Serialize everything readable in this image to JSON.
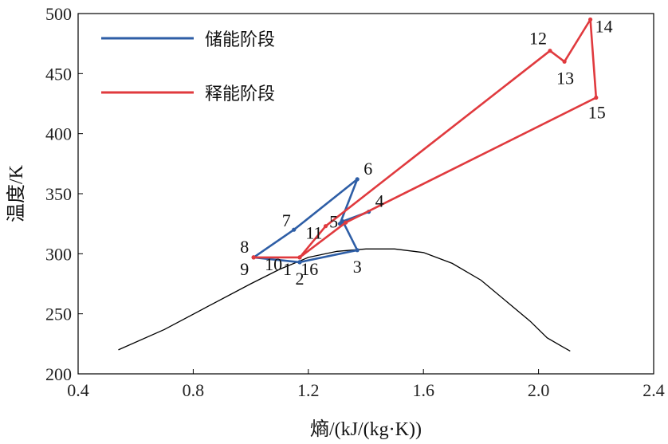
{
  "chart_data": {
    "type": "line",
    "xlabel": "熵/(kJ/(kg·K))",
    "ylabel": "温度/K",
    "xlim": [
      0.4,
      2.4
    ],
    "ylim": [
      200,
      500
    ],
    "xticks": [
      0.4,
      0.8,
      1.2,
      1.6,
      2.0,
      2.4
    ],
    "xtick_labels": [
      "0.4",
      "0.8",
      "1.2",
      "1.6",
      "2.0",
      "2.4"
    ],
    "yticks": [
      200,
      250,
      300,
      350,
      400,
      450,
      500
    ],
    "ytick_labels": [
      "200",
      "250",
      "300",
      "350",
      "400",
      "450",
      "500"
    ],
    "grid": false,
    "legend_position": "top-left",
    "dome": {
      "color": "#000000",
      "x": [
        0.54,
        0.7,
        0.85,
        1.0,
        1.1,
        1.2,
        1.3,
        1.4,
        1.5,
        1.6,
        1.7,
        1.8,
        1.9,
        1.97,
        2.03,
        2.08,
        2.11
      ],
      "y": [
        220,
        237,
        256,
        275,
        287,
        297,
        302,
        304,
        304,
        301,
        292,
        278,
        258,
        244,
        230,
        223,
        219
      ]
    },
    "series": [
      {
        "name": "储能阶段",
        "color": "#2e5ea6",
        "x": [
          1.17,
          1.37,
          1.32,
          1.41,
          1.31,
          1.37,
          1.15,
          1.01,
          1.17
        ],
        "y": [
          293,
          303,
          327,
          335,
          325,
          362,
          320,
          297,
          293
        ]
      },
      {
        "name": "释能阶段",
        "color": "#e03a3e",
        "x": [
          1.01,
          1.17,
          1.26,
          2.04,
          2.09,
          2.18,
          2.2,
          1.33,
          1.17,
          1.01
        ],
        "y": [
          297,
          297,
          323,
          469,
          460,
          495,
          430,
          326,
          297,
          297
        ]
      }
    ],
    "point_labels": [
      {
        "text": "2",
        "x": 1.17,
        "y": 293
      },
      {
        "text": "3",
        "x": 1.37,
        "y": 303
      },
      {
        "text": "4",
        "x": 1.41,
        "y": 335
      },
      {
        "text": "5",
        "x": 1.32,
        "y": 327
      },
      {
        "text": "6",
        "x": 1.37,
        "y": 362
      },
      {
        "text": "7",
        "x": 1.15,
        "y": 320
      },
      {
        "text": "8",
        "x": 1.01,
        "y": 297
      },
      {
        "text": "9",
        "x": 1.01,
        "y": 297
      },
      {
        "text": "10",
        "x": 1.09,
        "y": 297
      },
      {
        "text": "11",
        "x": 1.26,
        "y": 323
      },
      {
        "text": "1",
        "x": 1.17,
        "y": 297
      },
      {
        "text": "16",
        "x": 1.19,
        "y": 297
      },
      {
        "text": "12",
        "x": 2.04,
        "y": 469
      },
      {
        "text": "13",
        "x": 2.09,
        "y": 460
      },
      {
        "text": "14",
        "x": 2.18,
        "y": 495
      },
      {
        "text": "15",
        "x": 2.2,
        "y": 430
      }
    ]
  }
}
